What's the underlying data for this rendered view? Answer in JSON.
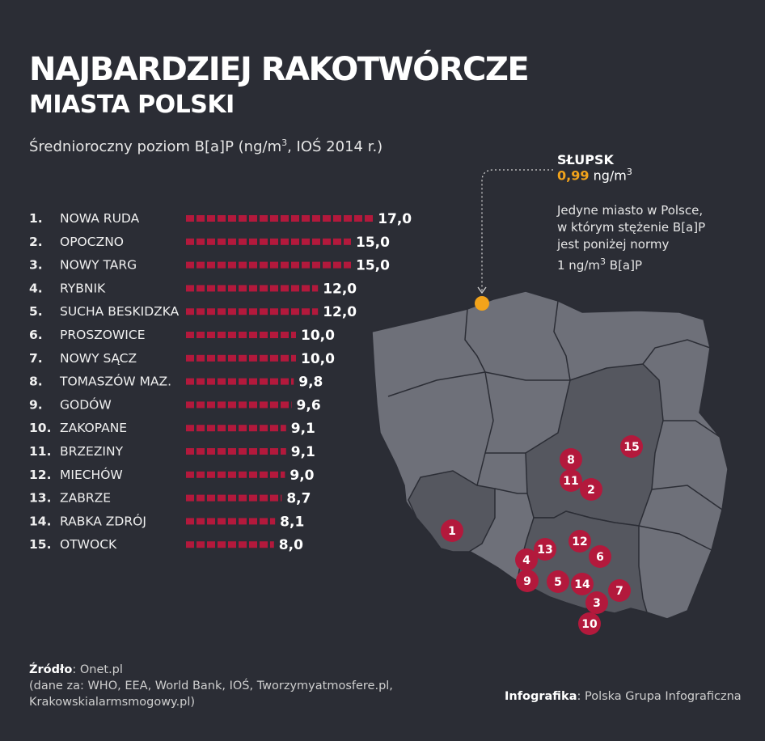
{
  "header": {
    "title": "NAJBARDZIEJ RAKOTWÓRCZE",
    "subtitle_line": "MIASTA POLSKI",
    "caption_prefix": "Średnioroczny poziom B[a]P (ng/m",
    "caption_sup": "3",
    "caption_suffix": ", IOŚ 2014 r.)"
  },
  "chart_data": {
    "type": "bar",
    "orientation": "horizontal",
    "categories": [
      "NOWA RUDA",
      "OPOCZNO",
      "NOWY TARG",
      "RYBNIK",
      "SUCHA BESKIDZKA",
      "PROSZOWICE",
      "NOWY SĄCZ",
      "TOMASZÓW MAZ.",
      "GODÓW",
      "ZAKOPANE",
      "BRZEZINY",
      "MIECHÓW",
      "ZABRZE",
      "RABKA ZDRÓJ",
      "OTWOCK"
    ],
    "ranks": [
      "1.",
      "2.",
      "3.",
      "4.",
      "5.",
      "6.",
      "7.",
      "8.",
      "9.",
      "10.",
      "11.",
      "12.",
      "13.",
      "14.",
      "15."
    ],
    "values": [
      17.0,
      15.0,
      15.0,
      12.0,
      12.0,
      10.0,
      10.0,
      9.8,
      9.6,
      9.1,
      9.1,
      9.0,
      8.7,
      8.1,
      8.0
    ],
    "value_labels": [
      "17,0",
      "15,0",
      "15,0",
      "12,0",
      "12,0",
      "10,0",
      "10,0",
      "9,8",
      "9,6",
      "9,1",
      "9,1",
      "9,0",
      "8,7",
      "8,1",
      "8,0"
    ],
    "bar_color": "#b3193c"
  },
  "callout": {
    "city": "SŁUPSK",
    "value": "0,99",
    "unit_prefix": " ng/m",
    "unit_sup": "3",
    "note_line1": "Jedyne miasto w Polsce,",
    "note_line2": "w którym stężenie B[a]P",
    "note_line3": "jest poniżej normy",
    "note_line4_prefix": "1 ng/m",
    "note_line4_sup": "3",
    "note_line4_suffix": " B[a]P",
    "marker_color": "#f2a31b"
  },
  "map": {
    "markers": [
      "1",
      "2",
      "3",
      "4",
      "5",
      "6",
      "7",
      "8",
      "9",
      "10",
      "11",
      "12",
      "13",
      "14",
      "15"
    ],
    "marker_color": "#b3193c",
    "map_color": "#6e7079",
    "highlight_color": "#55575f"
  },
  "footer": {
    "source_label": "Źródło",
    "source_colon": ": ",
    "source_main": "Onet.pl",
    "source_line2": "(dane za: WHO, EEA, World Bank, IOŚ, Tworzymyatmosfere.pl,",
    "source_line3": "Krakowskialarmsmogowy.pl)",
    "credit_label": "Infografika",
    "credit_colon": ": ",
    "credit_value": "Polska Grupa Infograficzna"
  }
}
